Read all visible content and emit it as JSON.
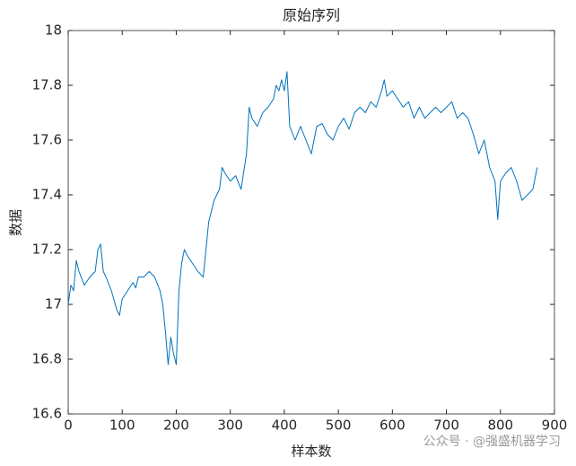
{
  "chart_data": {
    "type": "line",
    "title": "原始序列",
    "x_label": "样本数",
    "y_label": "数据",
    "watermark": "公众号 · @强盛机器学习",
    "x": [
      0,
      5,
      10,
      15,
      20,
      30,
      40,
      50,
      55,
      60,
      65,
      70,
      80,
      90,
      95,
      100,
      110,
      120,
      125,
      130,
      140,
      150,
      160,
      170,
      175,
      180,
      185,
      190,
      195,
      200,
      205,
      210,
      215,
      220,
      230,
      240,
      250,
      255,
      260,
      270,
      280,
      285,
      290,
      300,
      310,
      320,
      330,
      335,
      340,
      350,
      360,
      370,
      380,
      385,
      390,
      395,
      400,
      405,
      410,
      420,
      430,
      440,
      450,
      460,
      470,
      480,
      490,
      500,
      510,
      520,
      530,
      540,
      550,
      560,
      570,
      580,
      585,
      590,
      600,
      610,
      620,
      630,
      640,
      650,
      660,
      670,
      680,
      690,
      700,
      710,
      720,
      730,
      740,
      750,
      760,
      770,
      780,
      790,
      795,
      800,
      810,
      820,
      830,
      840,
      850,
      860,
      868
    ],
    "series": [
      {
        "name": "数据",
        "color": "#0072bd",
        "values": [
          17.0,
          17.07,
          17.05,
          17.16,
          17.12,
          17.07,
          17.1,
          17.12,
          17.2,
          17.22,
          17.12,
          17.1,
          17.05,
          16.98,
          16.96,
          17.02,
          17.05,
          17.08,
          17.06,
          17.1,
          17.1,
          17.12,
          17.1,
          17.05,
          17.0,
          16.9,
          16.78,
          16.88,
          16.82,
          16.78,
          17.05,
          17.15,
          17.2,
          17.18,
          17.15,
          17.12,
          17.1,
          17.2,
          17.3,
          17.38,
          17.42,
          17.5,
          17.48,
          17.45,
          17.47,
          17.42,
          17.55,
          17.72,
          17.68,
          17.65,
          17.7,
          17.72,
          17.75,
          17.8,
          17.78,
          17.82,
          17.78,
          17.85,
          17.65,
          17.6,
          17.65,
          17.6,
          17.55,
          17.65,
          17.66,
          17.62,
          17.6,
          17.65,
          17.68,
          17.64,
          17.7,
          17.72,
          17.7,
          17.74,
          17.72,
          17.78,
          17.82,
          17.76,
          17.78,
          17.75,
          17.72,
          17.74,
          17.68,
          17.72,
          17.68,
          17.7,
          17.72,
          17.7,
          17.72,
          17.74,
          17.68,
          17.7,
          17.68,
          17.62,
          17.55,
          17.6,
          17.5,
          17.45,
          17.31,
          17.45,
          17.48,
          17.5,
          17.45,
          17.38,
          17.4,
          17.42,
          17.5
        ]
      }
    ],
    "xlim": [
      0,
      900
    ],
    "xticks": [
      0,
      100,
      200,
      300,
      400,
      500,
      600,
      700,
      800,
      900
    ],
    "ylim": [
      16.6,
      18
    ],
    "yticks": [
      16.6,
      16.8,
      17,
      17.2,
      17.4,
      17.6,
      17.8,
      18
    ]
  }
}
